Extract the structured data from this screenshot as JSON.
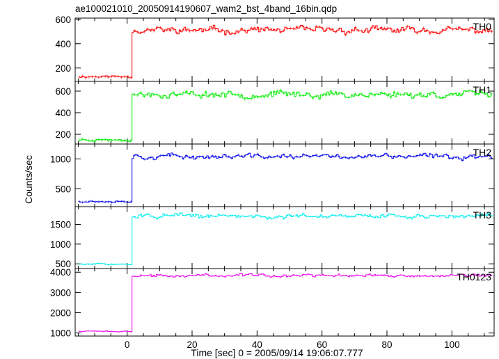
{
  "chart_data": {
    "type": "line",
    "title": "ae100021010_20050914190607_wam2_bst_4band_16bin.qdp",
    "ylabel": "Counts/sec",
    "xlabel": "Time [sec] 0 = 2005/09/14 19:06:07.777",
    "xlim": [
      -16,
      113
    ],
    "x_ticks": [
      0,
      20,
      40,
      60,
      80,
      100
    ],
    "trigger_time": 1.3,
    "grid": false,
    "panels": [
      {
        "name": "TH0",
        "color": "#ff0000",
        "ylim": [
          90,
          610
        ],
        "y_ticks": [
          200,
          400,
          600
        ],
        "pre_level": 130,
        "post_level": 510,
        "noise": 35,
        "seed": 11
      },
      {
        "name": "TH1",
        "color": "#00ee00",
        "ylim": [
          110,
          690
        ],
        "y_ticks": [
          200,
          400,
          600
        ],
        "pre_level": 150,
        "post_level": 570,
        "noise": 40,
        "seed": 23
      },
      {
        "name": "TH2",
        "color": "#0000ee",
        "ylim": [
          200,
          1250
        ],
        "y_ticks": [
          500,
          1000
        ],
        "pre_level": 290,
        "post_level": 1040,
        "noise": 55,
        "seed": 37
      },
      {
        "name": "TH3",
        "color": "#00eeee",
        "ylim": [
          380,
          1950
        ],
        "y_ticks": [
          500,
          1000,
          1500
        ],
        "pre_level": 490,
        "post_level": 1710,
        "noise": 70,
        "seed": 51
      },
      {
        "name": "TH0123",
        "color": "#ee00ee",
        "ylim": [
          850,
          4180
        ],
        "y_ticks": [
          1000,
          2000,
          3000,
          4000
        ],
        "pre_level": 1080,
        "post_level": 3830,
        "noise": 90,
        "seed": 73
      }
    ]
  }
}
